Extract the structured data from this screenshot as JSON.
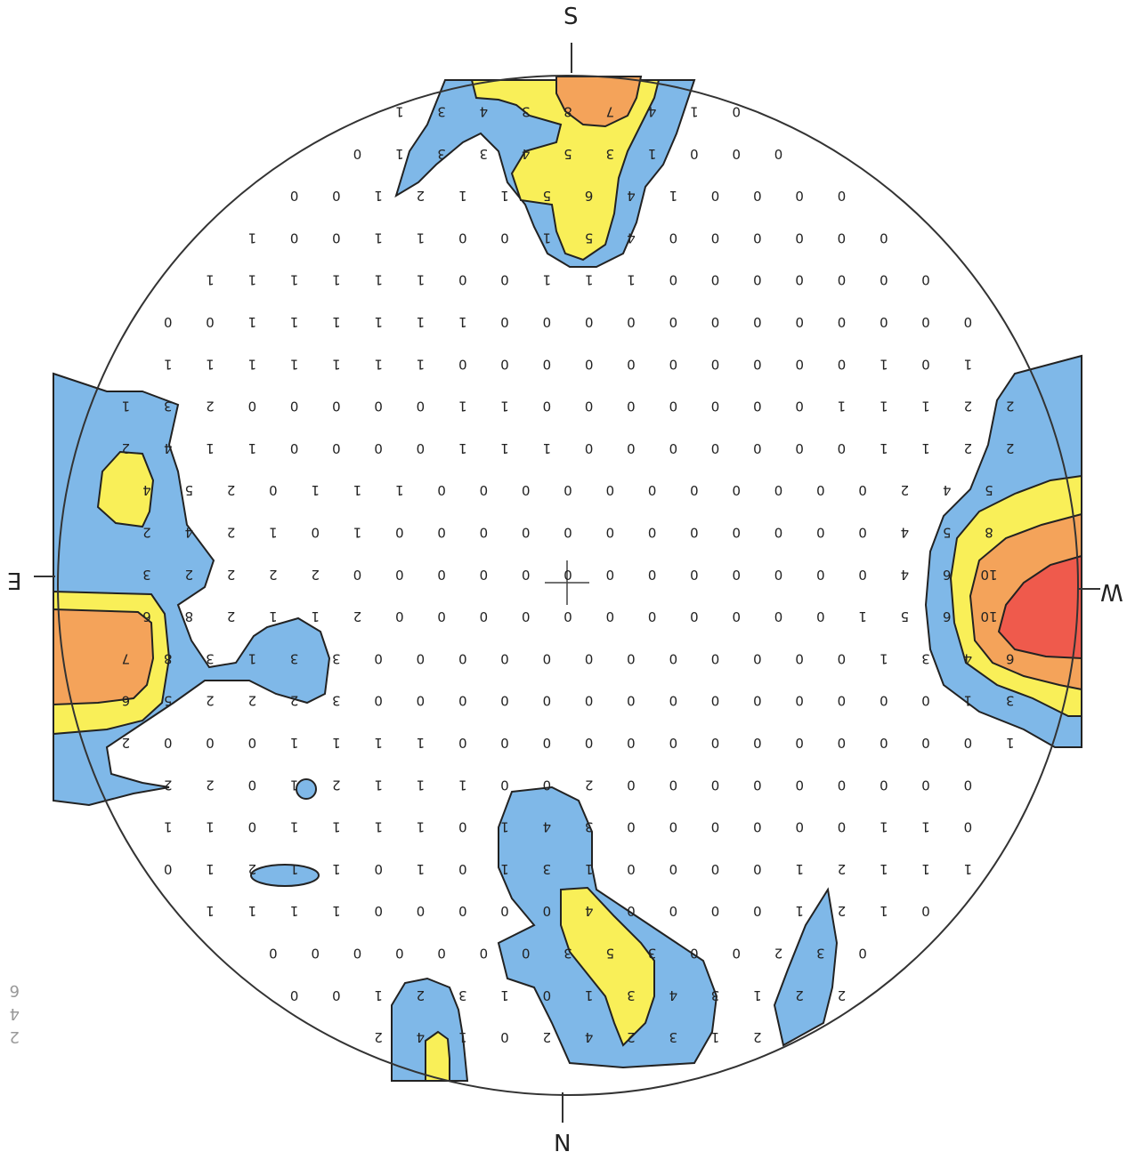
{
  "cardinals": {
    "S": "S",
    "N": "N",
    "W": "W",
    "E": "E"
  },
  "margin_notes": [
    "2",
    "4",
    "6"
  ],
  "colors": {
    "level_2": "#7fb8e8",
    "level_4": "#f9ef58",
    "level_6": "#f4a35a",
    "level_10": "#ef5a4c",
    "outline": "#222222"
  },
  "count_rows": [
    {
      "row": 0,
      "values": [
        "1",
        "3",
        "4",
        "3",
        "8",
        "7",
        "4",
        "1",
        "0"
      ]
    },
    {
      "row": 1,
      "values": [
        "0",
        "1",
        "3",
        "3",
        "4",
        "5",
        "3",
        "1",
        "0",
        "0",
        "0"
      ]
    },
    {
      "row": 2,
      "values": [
        "0",
        "0",
        "1",
        "2",
        "1",
        "1",
        "5",
        "6",
        "4",
        "1",
        "0",
        "0",
        "0",
        "0"
      ]
    },
    {
      "row": 3,
      "values": [
        "1",
        "0",
        "0",
        "1",
        "1",
        "0",
        "0",
        "1",
        "5",
        "4",
        "0",
        "0",
        "0",
        "0",
        "0",
        "0"
      ]
    },
    {
      "row": 4,
      "values": [
        "1",
        "1",
        "1",
        "1",
        "1",
        "1",
        "0",
        "0",
        "1",
        "1",
        "1",
        "0",
        "0",
        "0",
        "0",
        "0",
        "0",
        "0"
      ]
    },
    {
      "row": 5,
      "values": [
        "0",
        "0",
        "1",
        "1",
        "1",
        "1",
        "1",
        "1",
        "0",
        "0",
        "0",
        "0",
        "0",
        "0",
        "0",
        "0",
        "0",
        "0",
        "0",
        "0"
      ]
    },
    {
      "row": 6,
      "values": [
        "1",
        "1",
        "1",
        "1",
        "1",
        "1",
        "1",
        "0",
        "0",
        "0",
        "0",
        "0",
        "0",
        "0",
        "0",
        "0",
        "0",
        "1",
        "0",
        "1"
      ]
    },
    {
      "row": 7,
      "values": [
        "1",
        "3",
        "2",
        "0",
        "0",
        "0",
        "0",
        "0",
        "1",
        "1",
        "0",
        "0",
        "0",
        "0",
        "0",
        "0",
        "0",
        "1",
        "1",
        "1",
        "2",
        "2"
      ]
    },
    {
      "row": 8,
      "values": [
        "2",
        "4",
        "1",
        "1",
        "0",
        "0",
        "0",
        "0",
        "1",
        "1",
        "1",
        "0",
        "0",
        "0",
        "0",
        "0",
        "0",
        "0",
        "1",
        "1",
        "2",
        "2"
      ]
    },
    {
      "row": 9,
      "values": [
        "4",
        "5",
        "2",
        "0",
        "1",
        "1",
        "1",
        "0",
        "0",
        "0",
        "0",
        "0",
        "0",
        "0",
        "0",
        "0",
        "0",
        "0",
        "2",
        "4",
        "5"
      ]
    },
    {
      "row": 10,
      "values": [
        "2",
        "4",
        "2",
        "1",
        "0",
        "1",
        "0",
        "0",
        "0",
        "0",
        "0",
        "0",
        "0",
        "0",
        "0",
        "0",
        "0",
        "0",
        "4",
        "5",
        "8"
      ]
    },
    {
      "row": 11,
      "values": [
        "3",
        "2",
        "2",
        "2",
        "2",
        "0",
        "0",
        "0",
        "0",
        "0",
        "0",
        "0",
        "0",
        "0",
        "0",
        "0",
        "0",
        "0",
        "4",
        "6",
        "10"
      ]
    },
    {
      "row": 12,
      "values": [
        "6",
        "8",
        "2",
        "1",
        "1",
        "2",
        "0",
        "0",
        "0",
        "0",
        "0",
        "0",
        "0",
        "0",
        "0",
        "0",
        "0",
        "1",
        "5",
        "6",
        "10"
      ]
    },
    {
      "row": 13,
      "values": [
        "7",
        "8",
        "3",
        "1",
        "3",
        "3",
        "0",
        "0",
        "0",
        "0",
        "0",
        "0",
        "0",
        "0",
        "0",
        "0",
        "0",
        "0",
        "1",
        "3",
        "4",
        "6"
      ]
    },
    {
      "row": 14,
      "values": [
        "6",
        "5",
        "2",
        "2",
        "2",
        "3",
        "0",
        "0",
        "0",
        "0",
        "0",
        "0",
        "0",
        "0",
        "0",
        "0",
        "0",
        "0",
        "0",
        "0",
        "1",
        "3"
      ]
    },
    {
      "row": 15,
      "values": [
        "2",
        "0",
        "0",
        "0",
        "1",
        "1",
        "1",
        "1",
        "0",
        "0",
        "0",
        "0",
        "0",
        "0",
        "0",
        "0",
        "0",
        "0",
        "0",
        "0",
        "0",
        "1"
      ]
    },
    {
      "row": 16,
      "values": [
        "2",
        "2",
        "0",
        "1",
        "2",
        "1",
        "1",
        "1",
        "0",
        "0",
        "2",
        "0",
        "0",
        "0",
        "0",
        "0",
        "0",
        "0",
        "0",
        "0"
      ]
    },
    {
      "row": 17,
      "values": [
        "1",
        "1",
        "0",
        "1",
        "1",
        "1",
        "1",
        "0",
        "1",
        "4",
        "3",
        "0",
        "0",
        "0",
        "0",
        "0",
        "0",
        "1",
        "1",
        "0"
      ]
    },
    {
      "row": 18,
      "values": [
        "0",
        "1",
        "2",
        "1",
        "1",
        "0",
        "1",
        "0",
        "1",
        "3",
        "1",
        "0",
        "0",
        "0",
        "0",
        "1",
        "2",
        "1",
        "1",
        "1"
      ]
    },
    {
      "row": 19,
      "values": [
        "1",
        "1",
        "1",
        "1",
        "0",
        "0",
        "0",
        "0",
        "0",
        "4",
        "0",
        "0",
        "0",
        "0",
        "1",
        "2",
        "1",
        "0"
      ]
    },
    {
      "row": 20,
      "values": [
        "0",
        "0",
        "0",
        "0",
        "0",
        "0",
        "0",
        "3",
        "5",
        "3",
        "0",
        "0",
        "2",
        "3",
        "0"
      ]
    },
    {
      "row": 21,
      "values": [
        "0",
        "0",
        "1",
        "2",
        "3",
        "1",
        "0",
        "1",
        "3",
        "4",
        "3",
        "1",
        "2",
        "2"
      ]
    },
    {
      "row": 22,
      "values": [
        "2",
        "4",
        "1",
        "0",
        "2",
        "4",
        "2",
        "3",
        "1",
        "2"
      ]
    }
  ]
}
